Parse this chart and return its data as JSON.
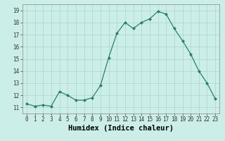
{
  "x": [
    0,
    1,
    2,
    3,
    4,
    5,
    6,
    7,
    8,
    9,
    10,
    11,
    12,
    13,
    14,
    15,
    16,
    17,
    18,
    19,
    20,
    21,
    22,
    23
  ],
  "y": [
    11.3,
    11.1,
    11.2,
    11.1,
    12.3,
    12.0,
    11.6,
    11.6,
    11.8,
    12.8,
    15.1,
    17.1,
    18.0,
    17.5,
    18.0,
    18.3,
    18.9,
    18.7,
    17.5,
    16.5,
    15.4,
    14.0,
    13.0,
    11.7
  ],
  "line_color": "#2d7d6e",
  "marker": "D",
  "markersize": 2.0,
  "linewidth": 0.9,
  "bg_color": "#cceee8",
  "grid_color": "#aad4cc",
  "xlabel": "Humidex (Indice chaleur)",
  "xlim": [
    -0.5,
    23.5
  ],
  "ylim": [
    10.5,
    19.5
  ],
  "yticks": [
    11,
    12,
    13,
    14,
    15,
    16,
    17,
    18,
    19
  ],
  "xticks": [
    0,
    1,
    2,
    3,
    4,
    5,
    6,
    7,
    8,
    9,
    10,
    11,
    12,
    13,
    14,
    15,
    16,
    17,
    18,
    19,
    20,
    21,
    22,
    23
  ],
  "tick_fontsize": 5.5,
  "xlabel_fontsize": 7.5
}
